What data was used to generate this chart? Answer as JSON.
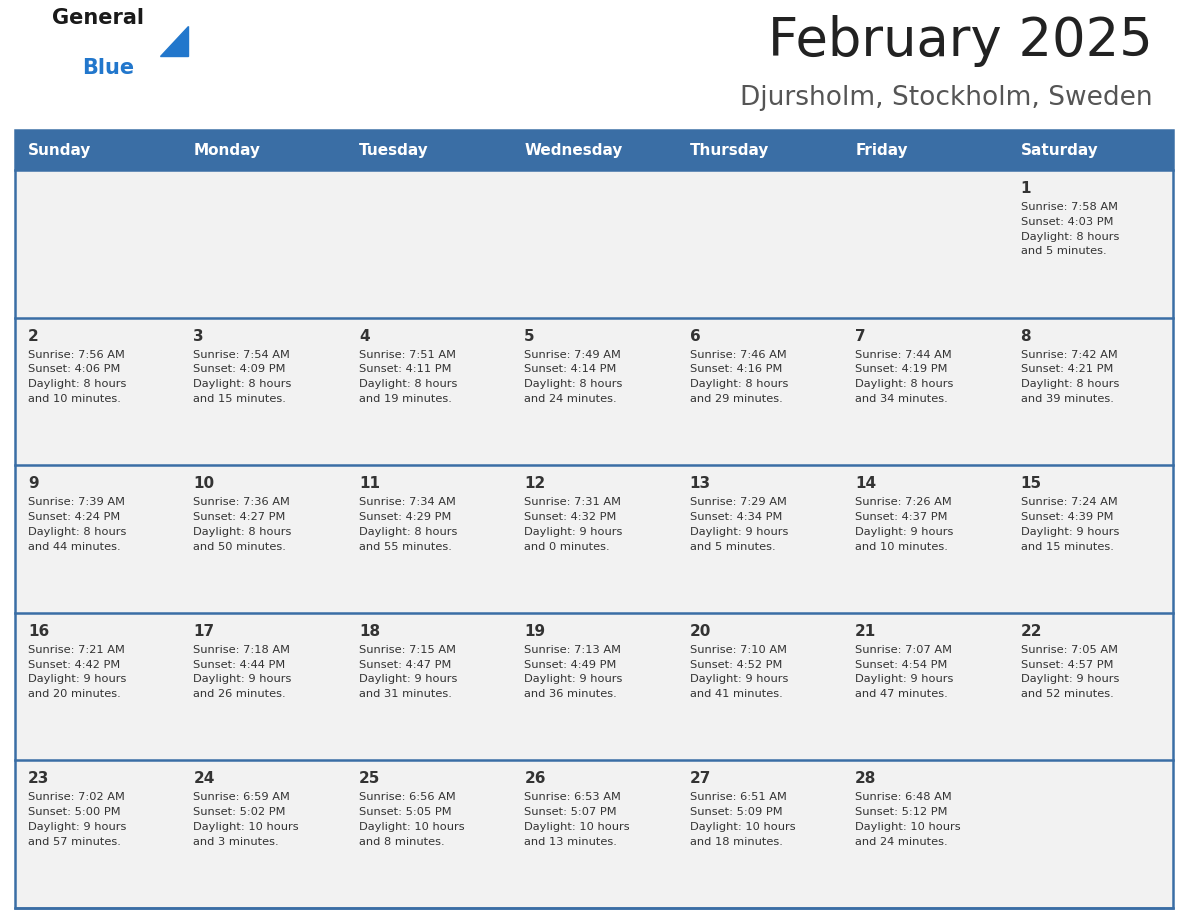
{
  "title": "February 2025",
  "subtitle": "Djursholm, Stockholm, Sweden",
  "days_of_week": [
    "Sunday",
    "Monday",
    "Tuesday",
    "Wednesday",
    "Thursday",
    "Friday",
    "Saturday"
  ],
  "header_bg": "#3a6ea5",
  "header_text_color": "#ffffff",
  "cell_bg": "#f2f2f2",
  "divider_color": "#3a6ea5",
  "text_color": "#333333",
  "day_num_color": "#333333",
  "title_color": "#222222",
  "subtitle_color": "#555555",
  "logo_general_color": "#1a1a1a",
  "logo_blue_color": "#2277cc",
  "weeks": [
    [
      {
        "day": null,
        "info": null
      },
      {
        "day": null,
        "info": null
      },
      {
        "day": null,
        "info": null
      },
      {
        "day": null,
        "info": null
      },
      {
        "day": null,
        "info": null
      },
      {
        "day": null,
        "info": null
      },
      {
        "day": 1,
        "info": "Sunrise: 7:58 AM\nSunset: 4:03 PM\nDaylight: 8 hours\nand 5 minutes."
      }
    ],
    [
      {
        "day": 2,
        "info": "Sunrise: 7:56 AM\nSunset: 4:06 PM\nDaylight: 8 hours\nand 10 minutes."
      },
      {
        "day": 3,
        "info": "Sunrise: 7:54 AM\nSunset: 4:09 PM\nDaylight: 8 hours\nand 15 minutes."
      },
      {
        "day": 4,
        "info": "Sunrise: 7:51 AM\nSunset: 4:11 PM\nDaylight: 8 hours\nand 19 minutes."
      },
      {
        "day": 5,
        "info": "Sunrise: 7:49 AM\nSunset: 4:14 PM\nDaylight: 8 hours\nand 24 minutes."
      },
      {
        "day": 6,
        "info": "Sunrise: 7:46 AM\nSunset: 4:16 PM\nDaylight: 8 hours\nand 29 minutes."
      },
      {
        "day": 7,
        "info": "Sunrise: 7:44 AM\nSunset: 4:19 PM\nDaylight: 8 hours\nand 34 minutes."
      },
      {
        "day": 8,
        "info": "Sunrise: 7:42 AM\nSunset: 4:21 PM\nDaylight: 8 hours\nand 39 minutes."
      }
    ],
    [
      {
        "day": 9,
        "info": "Sunrise: 7:39 AM\nSunset: 4:24 PM\nDaylight: 8 hours\nand 44 minutes."
      },
      {
        "day": 10,
        "info": "Sunrise: 7:36 AM\nSunset: 4:27 PM\nDaylight: 8 hours\nand 50 minutes."
      },
      {
        "day": 11,
        "info": "Sunrise: 7:34 AM\nSunset: 4:29 PM\nDaylight: 8 hours\nand 55 minutes."
      },
      {
        "day": 12,
        "info": "Sunrise: 7:31 AM\nSunset: 4:32 PM\nDaylight: 9 hours\nand 0 minutes."
      },
      {
        "day": 13,
        "info": "Sunrise: 7:29 AM\nSunset: 4:34 PM\nDaylight: 9 hours\nand 5 minutes."
      },
      {
        "day": 14,
        "info": "Sunrise: 7:26 AM\nSunset: 4:37 PM\nDaylight: 9 hours\nand 10 minutes."
      },
      {
        "day": 15,
        "info": "Sunrise: 7:24 AM\nSunset: 4:39 PM\nDaylight: 9 hours\nand 15 minutes."
      }
    ],
    [
      {
        "day": 16,
        "info": "Sunrise: 7:21 AM\nSunset: 4:42 PM\nDaylight: 9 hours\nand 20 minutes."
      },
      {
        "day": 17,
        "info": "Sunrise: 7:18 AM\nSunset: 4:44 PM\nDaylight: 9 hours\nand 26 minutes."
      },
      {
        "day": 18,
        "info": "Sunrise: 7:15 AM\nSunset: 4:47 PM\nDaylight: 9 hours\nand 31 minutes."
      },
      {
        "day": 19,
        "info": "Sunrise: 7:13 AM\nSunset: 4:49 PM\nDaylight: 9 hours\nand 36 minutes."
      },
      {
        "day": 20,
        "info": "Sunrise: 7:10 AM\nSunset: 4:52 PM\nDaylight: 9 hours\nand 41 minutes."
      },
      {
        "day": 21,
        "info": "Sunrise: 7:07 AM\nSunset: 4:54 PM\nDaylight: 9 hours\nand 47 minutes."
      },
      {
        "day": 22,
        "info": "Sunrise: 7:05 AM\nSunset: 4:57 PM\nDaylight: 9 hours\nand 52 minutes."
      }
    ],
    [
      {
        "day": 23,
        "info": "Sunrise: 7:02 AM\nSunset: 5:00 PM\nDaylight: 9 hours\nand 57 minutes."
      },
      {
        "day": 24,
        "info": "Sunrise: 6:59 AM\nSunset: 5:02 PM\nDaylight: 10 hours\nand 3 minutes."
      },
      {
        "day": 25,
        "info": "Sunrise: 6:56 AM\nSunset: 5:05 PM\nDaylight: 10 hours\nand 8 minutes."
      },
      {
        "day": 26,
        "info": "Sunrise: 6:53 AM\nSunset: 5:07 PM\nDaylight: 10 hours\nand 13 minutes."
      },
      {
        "day": 27,
        "info": "Sunrise: 6:51 AM\nSunset: 5:09 PM\nDaylight: 10 hours\nand 18 minutes."
      },
      {
        "day": 28,
        "info": "Sunrise: 6:48 AM\nSunset: 5:12 PM\nDaylight: 10 hours\nand 24 minutes."
      },
      {
        "day": null,
        "info": null
      }
    ]
  ]
}
